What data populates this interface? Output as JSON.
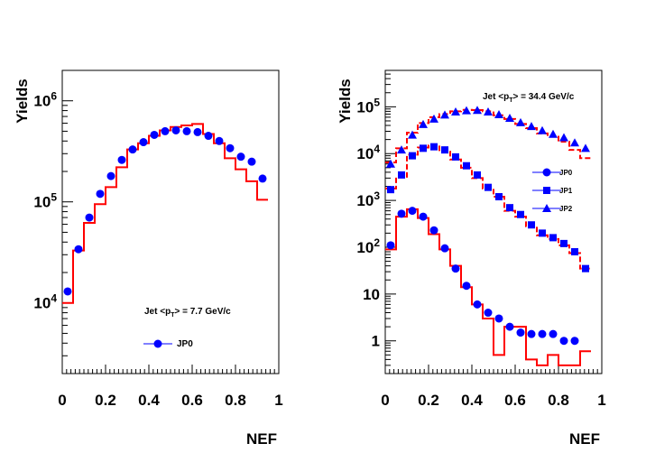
{
  "chart_data": [
    {
      "type": "scatter",
      "ylabel": "Yields",
      "xlabel": "NEF",
      "ylog": true,
      "xlim": [
        0,
        1
      ],
      "ylim": [
        2000,
        2000000
      ],
      "x_ticks": [
        "0",
        "0.2",
        "0.4",
        "0.6",
        "0.8",
        "1"
      ],
      "y_ticks": [
        {
          "value": 10000,
          "base": "10",
          "exp": "4"
        },
        {
          "value": 100000,
          "base": "10",
          "exp": "5"
        },
        {
          "value": 1000000,
          "base": "10",
          "exp": "6"
        }
      ],
      "annotation": {
        "pre": "Jet <p",
        "sub": "T",
        "post": "> = 7.7 GeV/c"
      },
      "legend": [
        {
          "label": "JP0",
          "marker": "circle"
        }
      ],
      "color_data": "#0000ff",
      "color_hist": "#ff0000",
      "series": [
        {
          "name": "JP0",
          "marker": "circle",
          "x": [
            0.025,
            0.075,
            0.125,
            0.175,
            0.225,
            0.275,
            0.325,
            0.375,
            0.425,
            0.475,
            0.525,
            0.575,
            0.625,
            0.675,
            0.725,
            0.775,
            0.825,
            0.875,
            0.925
          ],
          "y": [
            13000,
            34000,
            70000,
            120000,
            180000,
            260000,
            330000,
            390000,
            460000,
            500000,
            510000,
            500000,
            490000,
            450000,
            400000,
            340000,
            280000,
            250000,
            170000
          ]
        }
      ],
      "histograms": [
        {
          "style": "solid",
          "edges": [
            0,
            0.05,
            0.1,
            0.15,
            0.2,
            0.25,
            0.3,
            0.35,
            0.4,
            0.45,
            0.5,
            0.55,
            0.6,
            0.65,
            0.7,
            0.75,
            0.8,
            0.85,
            0.9,
            0.95
          ],
          "values": [
            10000,
            33000,
            62000,
            95000,
            140000,
            220000,
            330000,
            380000,
            450000,
            510000,
            550000,
            570000,
            590000,
            470000,
            380000,
            270000,
            210000,
            160000,
            105000
          ]
        }
      ]
    },
    {
      "type": "scatter",
      "ylabel": "Yields",
      "xlabel": "NEF",
      "ylog": true,
      "xlim": [
        0,
        1
      ],
      "ylim": [
        0.2,
        600000
      ],
      "x_ticks": [
        "0",
        "0.2",
        "0.4",
        "0.6",
        "0.8",
        "1"
      ],
      "y_ticks": [
        {
          "value": 1,
          "text": "1"
        },
        {
          "value": 10,
          "text": "10"
        },
        {
          "value": 100,
          "base": "10",
          "exp": "2"
        },
        {
          "value": 1000,
          "base": "10",
          "exp": "3"
        },
        {
          "value": 10000,
          "base": "10",
          "exp": "4"
        },
        {
          "value": 100000,
          "base": "10",
          "exp": "5"
        }
      ],
      "annotation": {
        "pre": "Jet <p",
        "sub": "T",
        "post": "> = 34.4 GeV/c"
      },
      "legend": [
        {
          "label": "JP0",
          "marker": "circle"
        },
        {
          "label": "JP1",
          "marker": "square"
        },
        {
          "label": "JP2",
          "marker": "triangle"
        }
      ],
      "color_data": "#0000ff",
      "color_hist": "#ff0000",
      "series": [
        {
          "name": "JP0",
          "marker": "circle",
          "x": [
            0.025,
            0.075,
            0.125,
            0.175,
            0.225,
            0.275,
            0.325,
            0.375,
            0.425,
            0.475,
            0.525,
            0.575,
            0.625,
            0.675,
            0.725,
            0.775,
            0.825,
            0.875
          ],
          "y": [
            110,
            520,
            600,
            450,
            230,
            95,
            35,
            15,
            6,
            4,
            3,
            2,
            1.5,
            1.4,
            1.4,
            1.4,
            1,
            1
          ]
        },
        {
          "name": "JP1",
          "marker": "square",
          "x": [
            0.025,
            0.075,
            0.125,
            0.175,
            0.225,
            0.275,
            0.325,
            0.375,
            0.425,
            0.475,
            0.525,
            0.575,
            0.625,
            0.675,
            0.725,
            0.775,
            0.825,
            0.875,
            0.925
          ],
          "y": [
            1700,
            3500,
            9000,
            13000,
            14000,
            12000,
            8500,
            5500,
            3500,
            1900,
            1200,
            700,
            500,
            300,
            200,
            160,
            120,
            80,
            35
          ]
        },
        {
          "name": "JP2",
          "marker": "triangle",
          "x": [
            0.025,
            0.075,
            0.125,
            0.175,
            0.225,
            0.275,
            0.325,
            0.375,
            0.425,
            0.475,
            0.525,
            0.575,
            0.625,
            0.675,
            0.725,
            0.775,
            0.825,
            0.875,
            0.925
          ],
          "y": [
            6000,
            12000,
            25000,
            42000,
            55000,
            67000,
            78000,
            83000,
            84000,
            78000,
            68000,
            57000,
            46000,
            38000,
            31000,
            26000,
            22000,
            17000,
            13000
          ]
        }
      ],
      "histograms": [
        {
          "style": "solid",
          "edges": [
            0,
            0.05,
            0.1,
            0.15,
            0.2,
            0.25,
            0.3,
            0.35,
            0.4,
            0.45,
            0.5,
            0.55,
            0.6,
            0.65,
            0.7,
            0.75,
            0.8,
            0.85,
            0.9,
            0.95
          ],
          "values": [
            90,
            450,
            650,
            420,
            190,
            90,
            40,
            14,
            6,
            3,
            0.5,
            2,
            2,
            0.4,
            0.3,
            0.5,
            0.3,
            0.3,
            0.6
          ]
        },
        {
          "style": "dashed",
          "edges": [
            0,
            0.05,
            0.1,
            0.15,
            0.2,
            0.25,
            0.3,
            0.35,
            0.4,
            0.45,
            0.5,
            0.55,
            0.6,
            0.65,
            0.7,
            0.75,
            0.8,
            0.85,
            0.9,
            0.95
          ],
          "values": [
            1800,
            3200,
            9500,
            13500,
            15000,
            11000,
            7500,
            5000,
            3000,
            1800,
            1200,
            600,
            450,
            280,
            180,
            150,
            110,
            75,
            35
          ]
        },
        {
          "style": "dashed",
          "edges": [
            0,
            0.05,
            0.1,
            0.15,
            0.2,
            0.25,
            0.3,
            0.35,
            0.4,
            0.45,
            0.5,
            0.55,
            0.6,
            0.65,
            0.7,
            0.75,
            0.8,
            0.85,
            0.9,
            0.95
          ],
          "values": [
            6500,
            13000,
            28000,
            45000,
            60000,
            70000,
            80000,
            86000,
            85000,
            80000,
            66000,
            55000,
            43000,
            35000,
            27000,
            23000,
            18000,
            12000,
            8000
          ]
        }
      ]
    }
  ]
}
